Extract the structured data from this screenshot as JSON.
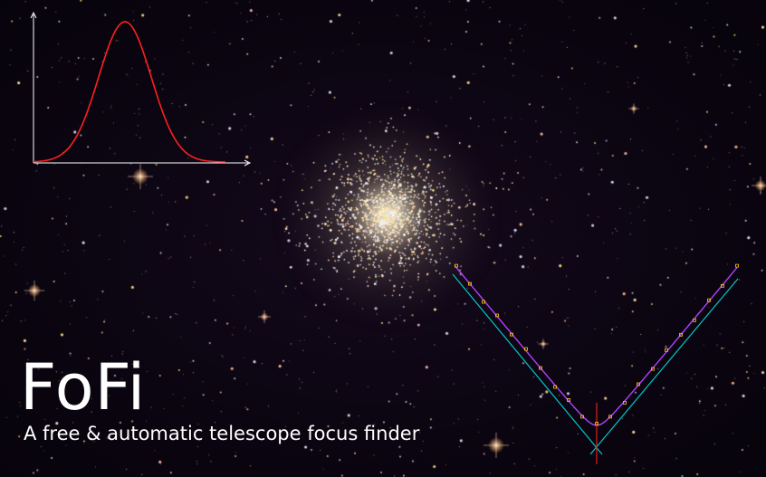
{
  "branding": {
    "title": "FoFi",
    "subtitle": "A free & automatic telescope focus finder"
  },
  "colors": {
    "sky": "#0a0510",
    "star_warm": "#ffd9a8",
    "star_cool": "#e8eaff",
    "cluster_core": "#f4f0d8",
    "gaussian_curve": "#ff2020",
    "axes": "#ffffff",
    "v_fit_line": "#00c8c8",
    "hyperbola_fit": "#b040ff",
    "sample_points": "#ffcc00",
    "focus_marker": "#e02020"
  },
  "illustrations": [
    "star-profile-gaussian",
    "v-curve-focus-fit",
    "globular-cluster"
  ]
}
